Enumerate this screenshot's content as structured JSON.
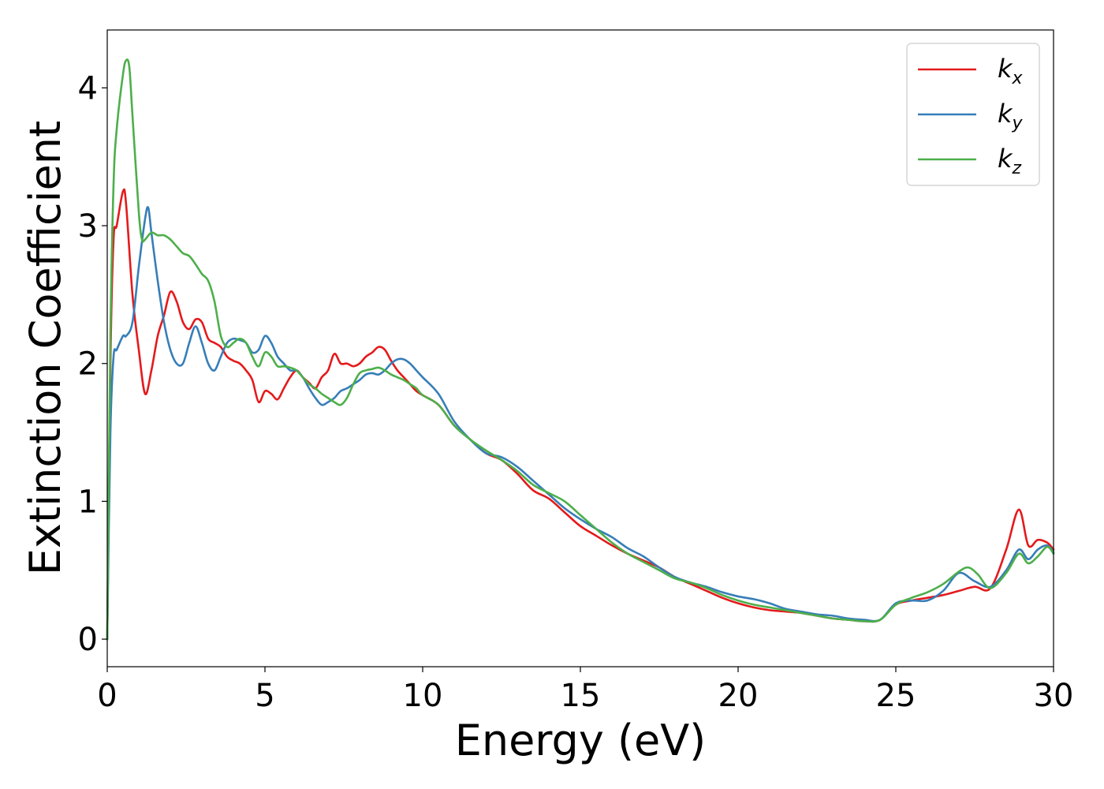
{
  "chart_data": {
    "type": "line",
    "xlabel": "Energy (eV)",
    "ylabel": "Extinction Coefficient",
    "xlim": [
      0,
      30
    ],
    "ylim": [
      -0.2,
      4.42
    ],
    "xticks": [
      0,
      5,
      10,
      15,
      20,
      25,
      30
    ],
    "yticks": [
      0,
      1,
      2,
      3,
      4
    ],
    "grid": false,
    "legend_position": "top-right",
    "series": [
      {
        "name": "k_x",
        "base": "k",
        "sub": "x",
        "color": "#e41a1c",
        "x": [
          0,
          0.1,
          0.2,
          0.3,
          0.5,
          0.6,
          0.8,
          1.0,
          1.2,
          1.4,
          1.6,
          1.8,
          2.0,
          2.2,
          2.4,
          2.6,
          2.8,
          3.0,
          3.2,
          3.4,
          3.6,
          3.8,
          4.0,
          4.2,
          4.4,
          4.6,
          4.8,
          5.0,
          5.2,
          5.4,
          5.6,
          5.8,
          6.0,
          6.2,
          6.4,
          6.6,
          6.8,
          7.0,
          7.2,
          7.4,
          7.6,
          7.8,
          8.0,
          8.2,
          8.4,
          8.6,
          8.8,
          9.0,
          9.2,
          9.4,
          9.6,
          9.8,
          10.0,
          10.5,
          11.0,
          11.5,
          12.0,
          12.5,
          13.0,
          13.5,
          14.0,
          14.5,
          15.0,
          15.5,
          16.0,
          16.5,
          17.0,
          17.5,
          18.0,
          18.5,
          19.0,
          19.5,
          20.0,
          20.5,
          21.0,
          21.5,
          22.0,
          22.5,
          23.0,
          23.5,
          24.0,
          24.5,
          25.0,
          25.5,
          26.0,
          26.5,
          27.0,
          27.5,
          28.0,
          28.5,
          28.9,
          29.2,
          29.5,
          29.8,
          30.0
        ],
        "y": [
          0,
          2.0,
          2.9,
          3.0,
          3.25,
          3.15,
          2.5,
          2.1,
          1.78,
          1.95,
          2.2,
          2.35,
          2.52,
          2.45,
          2.3,
          2.25,
          2.32,
          2.3,
          2.18,
          2.15,
          2.12,
          2.05,
          2.02,
          2.0,
          1.95,
          1.88,
          1.72,
          1.8,
          1.78,
          1.74,
          1.82,
          1.9,
          1.95,
          1.9,
          1.86,
          1.82,
          1.9,
          1.95,
          2.07,
          2.0,
          2.0,
          1.98,
          2.0,
          2.05,
          2.08,
          2.12,
          2.1,
          2.02,
          1.95,
          1.9,
          1.85,
          1.8,
          1.77,
          1.7,
          1.55,
          1.45,
          1.35,
          1.3,
          1.2,
          1.08,
          1.02,
          0.92,
          0.82,
          0.75,
          0.68,
          0.62,
          0.57,
          0.52,
          0.45,
          0.4,
          0.35,
          0.3,
          0.26,
          0.23,
          0.21,
          0.2,
          0.19,
          0.17,
          0.15,
          0.14,
          0.13,
          0.14,
          0.25,
          0.28,
          0.3,
          0.32,
          0.35,
          0.38,
          0.37,
          0.65,
          0.94,
          0.68,
          0.72,
          0.7,
          0.65
        ]
      },
      {
        "name": "k_y",
        "base": "k",
        "sub": "y",
        "color": "#377eb8",
        "x": [
          0,
          0.1,
          0.2,
          0.3,
          0.5,
          0.6,
          0.8,
          1.0,
          1.2,
          1.3,
          1.4,
          1.6,
          1.8,
          2.0,
          2.2,
          2.4,
          2.6,
          2.8,
          3.0,
          3.2,
          3.4,
          3.6,
          3.8,
          4.0,
          4.2,
          4.4,
          4.6,
          4.8,
          5.0,
          5.2,
          5.4,
          5.6,
          5.8,
          6.0,
          6.2,
          6.4,
          6.6,
          6.8,
          7.0,
          7.2,
          7.4,
          7.6,
          7.8,
          8.0,
          8.2,
          8.4,
          8.6,
          8.8,
          9.0,
          9.2,
          9.4,
          9.6,
          9.8,
          10.0,
          10.5,
          11.0,
          11.5,
          12.0,
          12.5,
          13.0,
          13.5,
          14.0,
          14.5,
          15.0,
          15.5,
          16.0,
          16.5,
          17.0,
          17.5,
          18.0,
          18.5,
          19.0,
          19.5,
          20.0,
          20.5,
          21.0,
          21.5,
          22.0,
          22.5,
          23.0,
          23.5,
          24.0,
          24.5,
          25.0,
          25.5,
          26.0,
          26.5,
          27.0,
          27.5,
          28.0,
          28.5,
          28.9,
          29.2,
          29.5,
          29.8,
          30.0
        ],
        "y": [
          0,
          1.5,
          2.05,
          2.1,
          2.2,
          2.2,
          2.3,
          2.7,
          3.05,
          3.13,
          2.95,
          2.6,
          2.3,
          2.1,
          2.0,
          2.0,
          2.15,
          2.27,
          2.15,
          2.0,
          1.95,
          2.05,
          2.15,
          2.18,
          2.17,
          2.15,
          2.08,
          2.1,
          2.2,
          2.15,
          2.05,
          2.0,
          1.95,
          1.95,
          1.9,
          1.82,
          1.75,
          1.7,
          1.72,
          1.75,
          1.8,
          1.82,
          1.85,
          1.88,
          1.92,
          1.93,
          1.92,
          1.95,
          2.0,
          2.03,
          2.03,
          2.0,
          1.95,
          1.9,
          1.78,
          1.58,
          1.45,
          1.35,
          1.32,
          1.25,
          1.15,
          1.05,
          0.95,
          0.87,
          0.8,
          0.74,
          0.66,
          0.6,
          0.52,
          0.45,
          0.41,
          0.38,
          0.34,
          0.31,
          0.29,
          0.26,
          0.22,
          0.2,
          0.18,
          0.17,
          0.15,
          0.14,
          0.14,
          0.26,
          0.28,
          0.28,
          0.35,
          0.48,
          0.42,
          0.38,
          0.5,
          0.65,
          0.58,
          0.65,
          0.68,
          0.63
        ]
      },
      {
        "name": "k_z",
        "base": "k",
        "sub": "z",
        "color": "#4daf4a",
        "x": [
          0,
          0.1,
          0.2,
          0.3,
          0.5,
          0.6,
          0.7,
          0.8,
          1.0,
          1.1,
          1.2,
          1.4,
          1.6,
          1.8,
          2.0,
          2.2,
          2.4,
          2.6,
          2.8,
          3.0,
          3.2,
          3.4,
          3.6,
          3.8,
          4.0,
          4.2,
          4.4,
          4.6,
          4.8,
          5.0,
          5.2,
          5.4,
          5.6,
          5.8,
          6.0,
          6.2,
          6.4,
          6.6,
          6.8,
          7.0,
          7.2,
          7.4,
          7.6,
          7.8,
          8.0,
          8.2,
          8.4,
          8.6,
          8.8,
          9.0,
          9.2,
          9.4,
          9.6,
          9.8,
          10.0,
          10.5,
          11.0,
          11.5,
          12.0,
          12.5,
          13.0,
          13.5,
          14.0,
          14.5,
          15.0,
          15.5,
          16.0,
          16.5,
          17.0,
          17.5,
          18.0,
          18.5,
          19.0,
          19.5,
          20.0,
          20.5,
          21.0,
          21.5,
          22.0,
          22.5,
          23.0,
          23.5,
          24.0,
          24.5,
          25.0,
          25.5,
          26.0,
          26.5,
          27.0,
          27.3,
          27.6,
          28.0,
          28.5,
          28.9,
          29.2,
          29.5,
          29.8,
          30.0
        ],
        "y": [
          0,
          2.2,
          3.3,
          3.7,
          4.1,
          4.2,
          4.15,
          3.8,
          3.1,
          2.9,
          2.9,
          2.95,
          2.93,
          2.93,
          2.9,
          2.85,
          2.8,
          2.78,
          2.72,
          2.65,
          2.6,
          2.45,
          2.2,
          2.12,
          2.15,
          2.18,
          2.15,
          2.05,
          1.98,
          2.08,
          2.05,
          1.98,
          1.98,
          1.97,
          1.95,
          1.9,
          1.85,
          1.82,
          1.78,
          1.75,
          1.72,
          1.7,
          1.75,
          1.85,
          1.93,
          1.95,
          1.96,
          1.97,
          1.95,
          1.92,
          1.9,
          1.88,
          1.85,
          1.82,
          1.77,
          1.7,
          1.55,
          1.45,
          1.37,
          1.3,
          1.22,
          1.12,
          1.06,
          1.0,
          0.9,
          0.8,
          0.7,
          0.62,
          0.56,
          0.5,
          0.44,
          0.41,
          0.37,
          0.32,
          0.28,
          0.25,
          0.23,
          0.21,
          0.19,
          0.17,
          0.15,
          0.14,
          0.13,
          0.14,
          0.25,
          0.3,
          0.34,
          0.4,
          0.49,
          0.52,
          0.47,
          0.37,
          0.48,
          0.62,
          0.55,
          0.6,
          0.67,
          0.62
        ]
      }
    ]
  }
}
